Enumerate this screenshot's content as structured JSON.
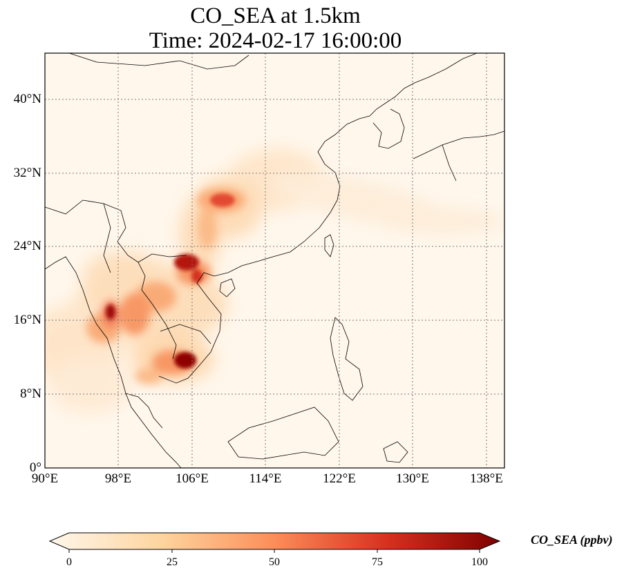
{
  "title": {
    "line1": "CO_SEA at 1.5km",
    "line2": "Time: 2024-02-17 16:00:00"
  },
  "map": {
    "lon_range": [
      90,
      140
    ],
    "lat_range": [
      0,
      45
    ],
    "x_ticks": [
      "90°E",
      "98°E",
      "106°E",
      "114°E",
      "122°E",
      "130°E",
      "138°E"
    ],
    "x_tick_values": [
      90,
      98,
      106,
      114,
      122,
      130,
      138
    ],
    "y_ticks": [
      "0°",
      "8°N",
      "16°N",
      "24°N",
      "32°N",
      "40°N"
    ],
    "y_tick_values": [
      0,
      8,
      16,
      24,
      32,
      40
    ],
    "gridlines": "dotted",
    "projection": "PlateCarree"
  },
  "colorbar": {
    "label": "CO_SEA (ppbv)",
    "ticks": [
      "0",
      "25",
      "50",
      "75",
      "100"
    ],
    "tick_values": [
      0,
      25,
      50,
      75,
      100
    ],
    "range": [
      0,
      100
    ],
    "colormap": "OrRd",
    "extend": "both",
    "colors": [
      "#fff7ec",
      "#fdd49e",
      "#fc8d59",
      "#d7301f",
      "#7f0000"
    ]
  }
}
